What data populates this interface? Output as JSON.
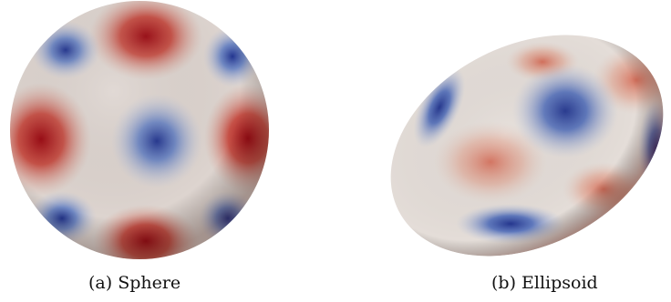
{
  "figures": [
    {
      "caption": "(a) Sphere"
    },
    {
      "caption": "(b) Ellipsoid"
    }
  ],
  "colors": {
    "background": "#ffffff",
    "surface_neutral": "#ddd4cf",
    "high_red": "#9b0b14",
    "mid_red": "#d87a66",
    "low_blue": "#2d3f9e",
    "mid_blue": "#6f8ac8"
  }
}
